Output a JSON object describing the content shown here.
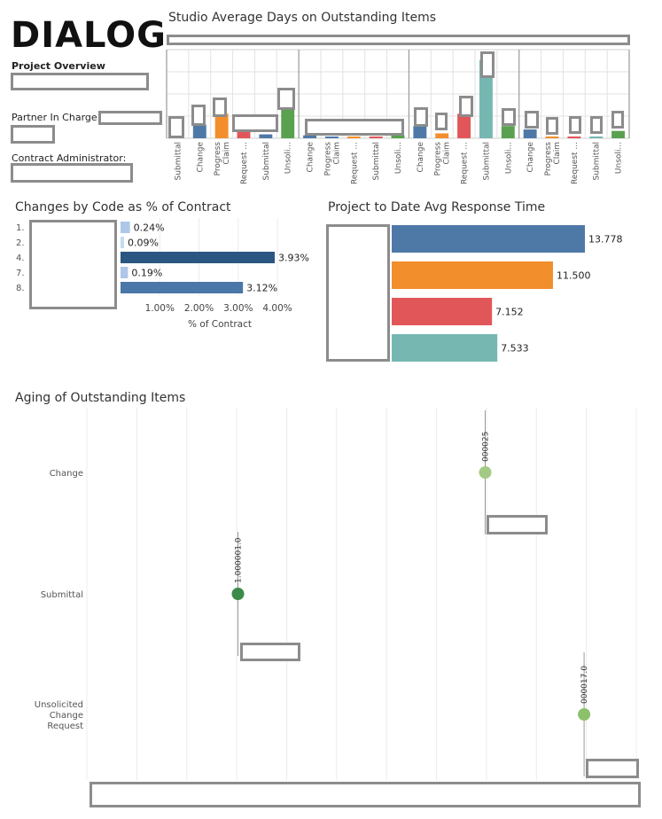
{
  "brand": {
    "logo_text": "DIALOG"
  },
  "sidebar": {
    "heading": "Project Overview",
    "partner_label": "Partner In Charge:",
    "contract_admin_label": "Contract Administrator:"
  },
  "chart_data": [
    {
      "type": "bar",
      "title": "Studio Average Days on Outstanding Items",
      "groups": 4,
      "categories": [
        "Submittal",
        "Change",
        "Progress Claim",
        "Request ...",
        "Submittal",
        "Unsoli...",
        "Change",
        "Progress Claim",
        "Request ...",
        "Submittal",
        "Unsoli...",
        "Change",
        "Progress Claim",
        "Request ...",
        "Submittal",
        "Unsoli...",
        "Change",
        "Progress Claim",
        "Request ...",
        "Submittal",
        "Unsoli..."
      ],
      "values": [
        0,
        0.28,
        0.5,
        0.15,
        0.08,
        0.7,
        0.06,
        0.03,
        0.03,
        0.02,
        0.06,
        0.25,
        0.1,
        0.5,
        1.6,
        0.25,
        0.18,
        0.03,
        0.02,
        0.03,
        0.15
      ],
      "colors": [
        "#4e79a7",
        "#4e79a7",
        "#f28e2b",
        "#e15759",
        "#4e79a7",
        "#59a14f",
        "#4e79a7",
        "#4e79a7",
        "#f28e2b",
        "#e15759",
        "#59a14f",
        "#4e79a7",
        "#f28e2b",
        "#e15759",
        "#76b7b2",
        "#59a14f",
        "#4e79a7",
        "#f28e2b",
        "#e15759",
        "#76b7b2",
        "#59a14f"
      ],
      "ylim": [
        0,
        1.7
      ]
    },
    {
      "type": "bar",
      "orientation": "horizontal",
      "title": "Changes by Code as % of Contract",
      "categories": [
        "1.",
        "2.",
        "4.",
        "7.",
        "8."
      ],
      "values": [
        0.24,
        0.09,
        3.93,
        0.19,
        3.12
      ],
      "value_labels": [
        "0.24%",
        "0.09%",
        "3.93%",
        "0.19%",
        "3.12%"
      ],
      "colors": [
        "#aec7e8",
        "#c6dbef",
        "#2b5681",
        "#aec7e8",
        "#4a76a8"
      ],
      "xlim": [
        0,
        4.6
      ],
      "ticks": [
        "1.00%",
        "2.00%",
        "3.00%",
        "4.00%"
      ],
      "tick_values": [
        1,
        2,
        3,
        4
      ],
      "xlabel": "% of Contract"
    },
    {
      "type": "bar",
      "orientation": "horizontal",
      "title": "Project to Date Avg Response Time",
      "values": [
        13.778,
        11.5,
        7.152,
        7.533
      ],
      "value_labels": [
        "13.778",
        "11.500",
        "7.152",
        "7.533"
      ],
      "colors": [
        "#4e79a7",
        "#f28e2b",
        "#e15759",
        "#76b7b2"
      ],
      "xlim": [
        0,
        17.5
      ]
    },
    {
      "type": "scatter",
      "title": "Aging of Outstanding Items",
      "categories": [
        "Change",
        "Submittal",
        "Unsolicited\nChange\nRequest"
      ],
      "points": [
        {
          "row": "Change",
          "x": 0.725,
          "label": "000025",
          "color": "#a3c985"
        },
        {
          "row": "Submittal",
          "x": 0.275,
          "label": "1.000001.0",
          "color": "#3b8a4a"
        },
        {
          "row": "Unsolicited\nChange\nRequest",
          "x": 0.905,
          "label": "000017.0",
          "color": "#8cc06a"
        }
      ],
      "xlim": [
        0,
        1
      ]
    }
  ]
}
